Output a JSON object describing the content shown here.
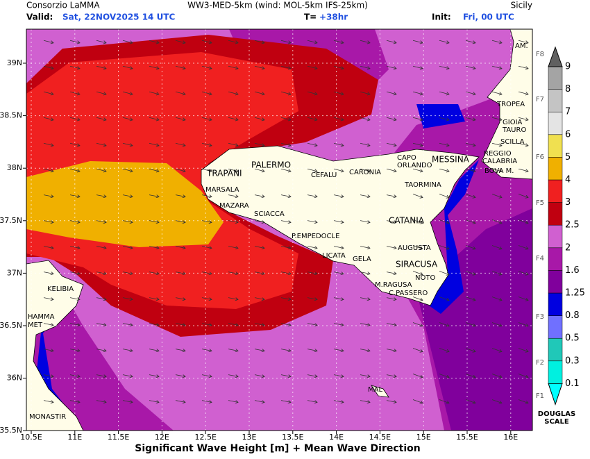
{
  "header": {
    "org": "Consorzio LaMMA",
    "model": "WW3-MED-5km (wind: MOL-5km IFS-25km)",
    "region": "Sicily",
    "valid_label": "Valid:",
    "valid": "Sat, 22NOV2025  14 UTC",
    "t_label": "T=",
    "t": "+38hr",
    "init_label": "Init:",
    "init": "Fri, 00 UTC"
  },
  "axes": {
    "lat_labels": [
      "39N",
      "38.5N",
      "38N",
      "37.5N",
      "37N",
      "36.5N",
      "36N",
      "35.5N"
    ],
    "lon_labels": [
      "10.5E",
      "11E",
      "11.5E",
      "12E",
      "12.5E",
      "13E",
      "13.5E",
      "14E",
      "14.5E",
      "15E",
      "15.5E",
      "16E"
    ]
  },
  "places": [
    "AM.",
    "TROPEA",
    "GIOIA",
    "TAURO",
    "SCILLA",
    "REGGIO",
    "CALABRIA",
    "BOVA M.",
    "MESSINA",
    "CAPO",
    "ORLANDO",
    "TAORMINA",
    "PALERMO",
    "CEFALU",
    "CARONIA",
    "TRAPANI",
    "MARSALA",
    "MAZARA",
    "SCIACCA",
    "P.EMPEDOCLE",
    "LICATA",
    "GELA",
    "CATANIA",
    "AUGUSTA",
    "SIRACUSA",
    "NOTO",
    "M.RAGUSA",
    "C.PASSERO",
    "KELIBIA",
    "HAMMA",
    "MET",
    "MONASTIR",
    "MAL"
  ],
  "legend": {
    "levels": [
      0.1,
      0.3,
      0.5,
      0.8,
      1.25,
      1.6,
      2,
      2.5,
      3,
      4,
      5,
      6,
      7,
      8,
      9
    ],
    "colors": [
      "#00ffff",
      "#00f0e0",
      "#20c8b8",
      "#7070ff",
      "#0000e0",
      "#80009c",
      "#a818a8",
      "#d060d0",
      "#c00010",
      "#f02020",
      "#f0b000",
      "#f0e050",
      "#e4e4e4",
      "#c4c4c4",
      "#a4a4a4",
      "#606060"
    ],
    "douglas": [
      "F1",
      "F2",
      "F3",
      "F4",
      "F5",
      "F6",
      "F7",
      "F8"
    ],
    "scale_title": [
      "DOUGLAS",
      "SCALE"
    ]
  },
  "footer": "Significant Wave Height [m] + Mean Wave Direction"
}
